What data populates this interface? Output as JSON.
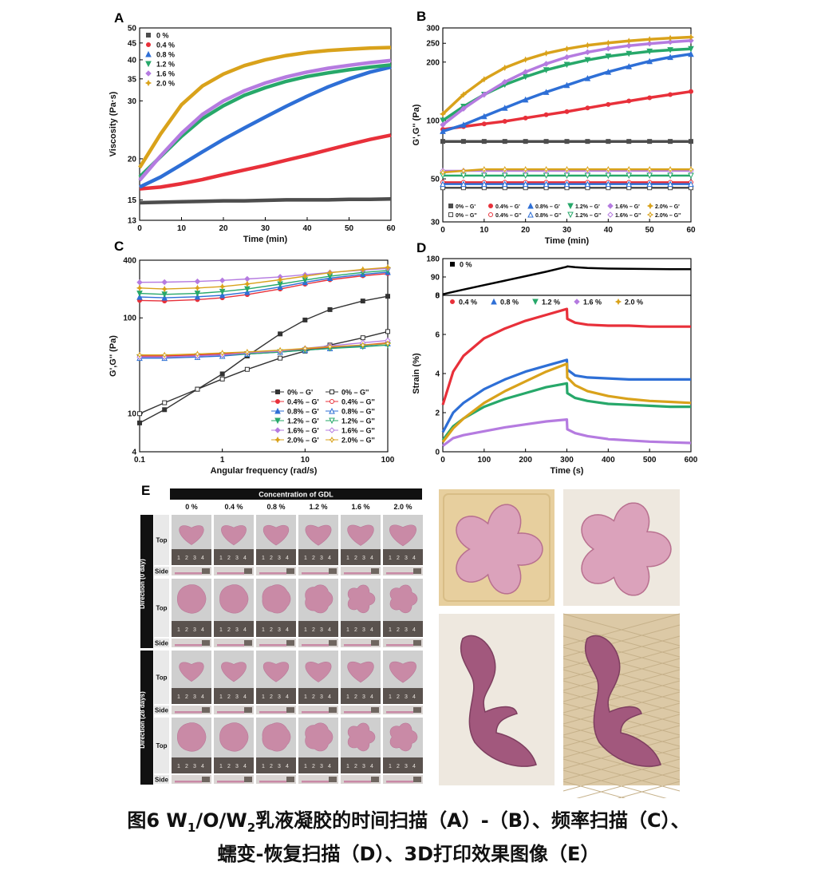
{
  "chart_data": [
    {
      "panel": "A",
      "type": "line",
      "xlabel": "Time (min)",
      "ylabel": "Viscosity (Pa·s)",
      "xlim": [
        0,
        60
      ],
      "ylim": [
        13,
        50
      ],
      "yscale": "log",
      "xticks": [
        0,
        10,
        20,
        30,
        40,
        50,
        60
      ],
      "yticks": [
        13,
        15,
        20,
        30,
        35,
        40,
        45,
        50
      ],
      "legend_position": "top-left",
      "x": [
        0,
        5,
        10,
        15,
        20,
        25,
        30,
        35,
        40,
        45,
        50,
        55,
        60
      ],
      "series": [
        {
          "name": "0 %",
          "color": "#4d4d4d",
          "values": [
            14.7,
            14.75,
            14.8,
            14.85,
            14.9,
            14.9,
            14.95,
            15.0,
            15.0,
            15.0,
            15.05,
            15.05,
            15.1
          ]
        },
        {
          "name": "0.4 %",
          "color": "#e8303a",
          "values": [
            16.2,
            16.4,
            16.8,
            17.3,
            17.9,
            18.5,
            19.1,
            19.8,
            20.5,
            21.3,
            22.1,
            22.9,
            23.6
          ]
        },
        {
          "name": "0.8 %",
          "color": "#2e6fd6",
          "values": [
            16.4,
            17.6,
            19.2,
            21.0,
            22.9,
            24.8,
            26.8,
            28.9,
            31.0,
            33.1,
            35.0,
            36.7,
            38.0
          ]
        },
        {
          "name": "1.2 %",
          "color": "#27a86a",
          "values": [
            17.6,
            20.3,
            23.4,
            26.5,
            29.0,
            31.2,
            32.9,
            34.4,
            35.6,
            36.5,
            37.3,
            38.0,
            38.6
          ]
        },
        {
          "name": "1.6 %",
          "color": "#b57be0",
          "values": [
            17.2,
            20.4,
            23.9,
            27.3,
            30.0,
            32.2,
            34.0,
            35.5,
            36.7,
            37.7,
            38.5,
            39.2,
            39.8
          ]
        },
        {
          "name": "2.0 %",
          "color": "#d9a21b",
          "values": [
            18.8,
            23.8,
            29.2,
            33.3,
            36.2,
            38.4,
            40.0,
            41.2,
            42.1,
            42.7,
            43.1,
            43.4,
            43.6
          ]
        }
      ]
    },
    {
      "panel": "B",
      "type": "line",
      "xlabel": "Time (min)",
      "ylabel": "G',G'' (Pa)",
      "xlim": [
        0,
        60
      ],
      "ylim": [
        30,
        300
      ],
      "yscale": "log",
      "xticks": [
        0,
        10,
        20,
        30,
        40,
        50,
        60
      ],
      "yticks": [
        30,
        50,
        100,
        200,
        250,
        300
      ],
      "legend_position": "bottom",
      "x": [
        0,
        5,
        10,
        15,
        20,
        25,
        30,
        35,
        40,
        45,
        50,
        55,
        60
      ],
      "series": [
        {
          "name": "0% – G'",
          "color": "#4d4d4d",
          "values": [
            78,
            78,
            78,
            78,
            78,
            78,
            78,
            78,
            78,
            78,
            78,
            78,
            78
          ]
        },
        {
          "name": "0.4% – G'",
          "color": "#e8303a",
          "values": [
            90,
            93,
            96,
            99,
            103,
            107,
            111,
            116,
            121,
            126,
            131,
            136,
            141
          ]
        },
        {
          "name": "0.8% – G'",
          "color": "#2e6fd6",
          "values": [
            88,
            95,
            105,
            116,
            128,
            140,
            152,
            165,
            178,
            190,
            202,
            212,
            220
          ]
        },
        {
          "name": "1.2% – G'",
          "color": "#27a86a",
          "values": [
            100,
            118,
            136,
            153,
            168,
            182,
            194,
            205,
            214,
            221,
            227,
            231,
            234
          ]
        },
        {
          "name": "1.6% – G'",
          "color": "#b57be0",
          "values": [
            95,
            115,
            136,
            158,
            178,
            196,
            212,
            225,
            235,
            243,
            249,
            254,
            258
          ]
        },
        {
          "name": "2.0% – G'",
          "color": "#d9a21b",
          "values": [
            108,
            136,
            163,
            187,
            206,
            222,
            234,
            244,
            251,
            257,
            262,
            266,
            269
          ]
        },
        {
          "name": "0% – G''",
          "color": "#4d4d4d",
          "values": [
            45,
            45,
            45,
            45,
            45,
            45,
            45,
            45,
            45,
            45,
            45,
            45,
            45
          ]
        },
        {
          "name": "0.4% – G''",
          "color": "#e8303a",
          "values": [
            48,
            48,
            48,
            48,
            48,
            48,
            48,
            48,
            48,
            48,
            48,
            48,
            48
          ]
        },
        {
          "name": "0.8% – G''",
          "color": "#2e6fd6",
          "values": [
            47,
            47,
            47,
            47,
            47,
            47,
            47,
            47,
            47,
            47,
            47,
            47,
            47
          ]
        },
        {
          "name": "1.2% – G''",
          "color": "#27a86a",
          "values": [
            52,
            52,
            52,
            52,
            52,
            52,
            52,
            52,
            52,
            52,
            52,
            52,
            52
          ]
        },
        {
          "name": "1.6% – G''",
          "color": "#b57be0",
          "values": [
            55,
            55,
            55,
            55,
            55,
            55,
            55,
            55,
            55,
            55,
            55,
            55,
            55
          ]
        },
        {
          "name": "2.0% – G''",
          "color": "#d9a21b",
          "values": [
            54,
            55,
            56,
            56,
            56,
            56,
            56,
            56,
            56,
            56,
            56,
            56,
            56
          ]
        }
      ]
    },
    {
      "panel": "C",
      "type": "line",
      "xlabel": "Angular frequency (rad/s)",
      "ylabel": "G',G'' (Pa)",
      "xlim": [
        0.1,
        100
      ],
      "ylim": [
        4,
        400
      ],
      "xscale": "log",
      "yscale": "log",
      "xticks": [
        0.1,
        1,
        10,
        100
      ],
      "yticks": [
        4,
        10,
        100,
        400
      ],
      "legend_position": "bottom-right",
      "x": [
        0.1,
        0.2,
        0.5,
        1,
        2,
        5,
        10,
        20,
        50,
        100
      ],
      "series": [
        {
          "name": "0% – G'",
          "color": "#333333",
          "open": false,
          "values": [
            8,
            11,
            18,
            26,
            40,
            68,
            95,
            122,
            150,
            168
          ]
        },
        {
          "name": "0% – G''",
          "color": "#333333",
          "open": true,
          "values": [
            10,
            13,
            18,
            23,
            29,
            38,
            45,
            52,
            62,
            72
          ]
        },
        {
          "name": "0.4% – G'",
          "color": "#e8303a",
          "open": false,
          "values": [
            152,
            150,
            155,
            162,
            175,
            200,
            225,
            250,
            275,
            290
          ]
        },
        {
          "name": "0.4% – G''",
          "color": "#e8303a",
          "open": true,
          "values": [
            40,
            40,
            41,
            42,
            43,
            45,
            47,
            49,
            52,
            55
          ]
        },
        {
          "name": "0.8% – G'",
          "color": "#2e6fd6",
          "open": false,
          "values": [
            165,
            162,
            166,
            172,
            185,
            210,
            235,
            260,
            285,
            300
          ]
        },
        {
          "name": "0.8% – G''",
          "color": "#2e6fd6",
          "open": true,
          "values": [
            38,
            38,
            39,
            40,
            42,
            44,
            46,
            48,
            51,
            54
          ]
        },
        {
          "name": "1.2% – G'",
          "color": "#27a86a",
          "open": false,
          "values": [
            180,
            176,
            180,
            188,
            200,
            225,
            248,
            272,
            298,
            312
          ]
        },
        {
          "name": "1.2% – G''",
          "color": "#27a86a",
          "open": true,
          "values": [
            39,
            39,
            40,
            41,
            42,
            44,
            46,
            48,
            50,
            52
          ]
        },
        {
          "name": "1.6% – G'",
          "color": "#b57be0",
          "open": false,
          "values": [
            235,
            236,
            240,
            246,
            255,
            268,
            282,
            298,
            315,
            328
          ]
        },
        {
          "name": "1.6% – G''",
          "color": "#b57be0",
          "open": true,
          "values": [
            39,
            39,
            40,
            41,
            43,
            45,
            48,
            51,
            55,
            58
          ]
        },
        {
          "name": "2.0% – G'",
          "color": "#d9a21b",
          "open": false,
          "values": [
            205,
            200,
            205,
            212,
            226,
            250,
            272,
            296,
            320,
            336
          ]
        },
        {
          "name": "2.0% – G''",
          "color": "#d9a21b",
          "open": true,
          "values": [
            41,
            41,
            42,
            43,
            44,
            46,
            48,
            50,
            52,
            54
          ]
        }
      ]
    },
    {
      "panel": "D",
      "type": "line",
      "xlabel": "Time (s)",
      "ylabel": "Strain (%)",
      "xlim": [
        0,
        600
      ],
      "xticks": [
        0,
        100,
        200,
        300,
        400,
        500,
        600
      ],
      "top_ylim": [
        0,
        180
      ],
      "top_yticks": [
        0,
        90,
        180
      ],
      "ylim": [
        0,
        8
      ],
      "yticks": [
        0,
        2,
        4,
        6,
        8
      ],
      "legend_position": "top",
      "x": [
        0,
        25,
        50,
        100,
        150,
        200,
        250,
        300,
        301,
        320,
        350,
        400,
        450,
        500,
        550,
        600
      ],
      "top_series": [
        {
          "name": "0 %",
          "color": "#000000",
          "values": [
            5,
            17,
            28,
            50,
            72,
            94,
            116,
            140,
            142,
            138,
            134,
            131,
            130,
            129,
            128,
            128
          ]
        }
      ],
      "series": [
        {
          "name": "0.4 %",
          "color": "#e8303a",
          "values": [
            2.4,
            4.1,
            4.9,
            5.8,
            6.3,
            6.7,
            7.0,
            7.3,
            6.8,
            6.6,
            6.5,
            6.45,
            6.45,
            6.4,
            6.4,
            6.4
          ]
        },
        {
          "name": "0.8 %",
          "color": "#2e6fd6",
          "values": [
            1.0,
            2.0,
            2.5,
            3.2,
            3.7,
            4.1,
            4.4,
            4.7,
            4.2,
            3.9,
            3.8,
            3.75,
            3.7,
            3.7,
            3.7,
            3.7
          ]
        },
        {
          "name": "1.2 %",
          "color": "#27a86a",
          "values": [
            0.6,
            1.3,
            1.7,
            2.3,
            2.7,
            3.0,
            3.3,
            3.5,
            3.0,
            2.75,
            2.6,
            2.45,
            2.4,
            2.35,
            2.3,
            2.3
          ]
        },
        {
          "name": "1.6 %",
          "color": "#b57be0",
          "values": [
            0.3,
            0.7,
            0.85,
            1.05,
            1.25,
            1.4,
            1.55,
            1.65,
            1.15,
            0.95,
            0.8,
            0.65,
            0.58,
            0.52,
            0.48,
            0.45
          ]
        },
        {
          "name": "2.0 %",
          "color": "#d9a21b",
          "values": [
            0.5,
            1.2,
            1.7,
            2.5,
            3.1,
            3.6,
            4.1,
            4.5,
            3.8,
            3.4,
            3.1,
            2.85,
            2.7,
            2.6,
            2.55,
            2.5
          ]
        }
      ]
    },
    {
      "panel": "E",
      "type": "table",
      "header": "Concentration of GDL",
      "columns": [
        "0 %",
        "0.4 %",
        "0.8 %",
        "1.2 %",
        "1.6 %",
        "2.0 %"
      ],
      "groups": [
        "Direction (0 day)",
        "Direction (28 days)"
      ],
      "rows": [
        "Top",
        "Side",
        "Top",
        "Side"
      ],
      "row_shapes": [
        "heart",
        "flower"
      ],
      "ruler_marks": [
        "1",
        "2",
        "3",
        "4"
      ]
    }
  ],
  "panel_labels": [
    "A",
    "B",
    "C",
    "D",
    "E"
  ],
  "d_legend_top": "0 %",
  "colors": {
    "gel_pink": "#c98aa6",
    "gel_pink_light": "#dba2bb",
    "photo_bg": "#cfcfcf",
    "biscuit": "#e7cf9e",
    "wafer": "#dcc9a6",
    "cloth": "#eee8df",
    "purple_gel": "#a2587d"
  },
  "caption": {
    "line1_prefix": "图6 W",
    "sub1": "1",
    "line1_mid": "/O/W",
    "sub2": "2",
    "line1_suffix": "乳液凝胶的时间扫描（A）-（B）、频率扫描（C）、",
    "line2": "蠕变-恢复扫描（D）、3D打印效果图像（E）"
  }
}
